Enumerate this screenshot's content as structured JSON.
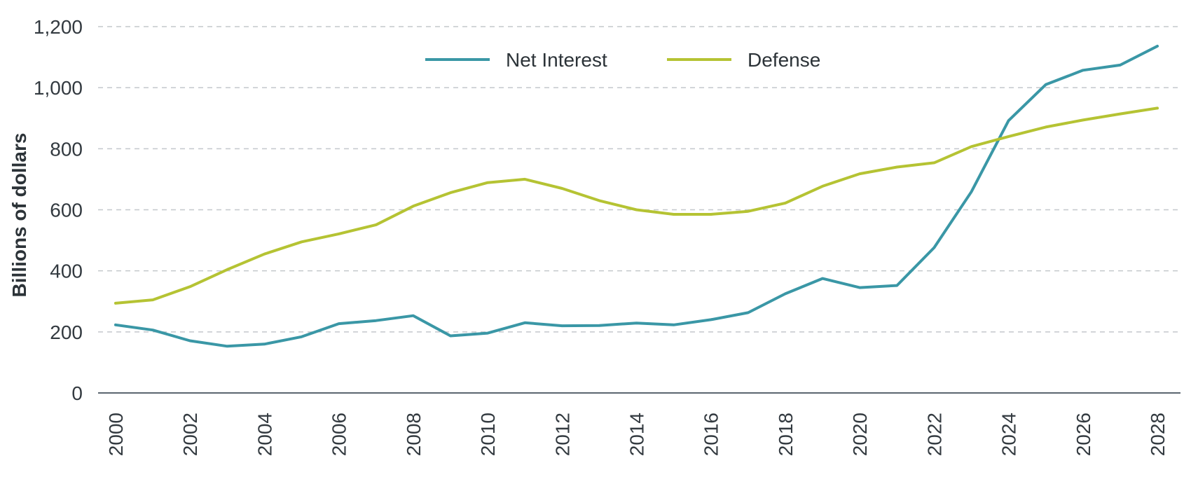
{
  "chart_data": {
    "type": "line",
    "title": "",
    "xlabel": "",
    "ylabel": "Billions of dollars",
    "xlim": [
      2000,
      2028
    ],
    "ylim": [
      0,
      1200
    ],
    "yticks": [
      0,
      200,
      400,
      600,
      800,
      1000,
      1200
    ],
    "ytick_labels": [
      "0",
      "200",
      "400",
      "600",
      "800",
      "1,000",
      "1,200"
    ],
    "xticks": [
      2000,
      2002,
      2004,
      2006,
      2008,
      2010,
      2012,
      2014,
      2016,
      2018,
      2020,
      2022,
      2024,
      2026,
      2028
    ],
    "xtick_labels": [
      "2000",
      "2002",
      "2004",
      "2006",
      "2008",
      "2010",
      "2012",
      "2014",
      "2016",
      "2018",
      "2020",
      "2022",
      "2024",
      "2026",
      "2028"
    ],
    "grid": "horizontal dashed",
    "legend_position": "top-center",
    "x": [
      2000,
      2001,
      2002,
      2003,
      2004,
      2005,
      2006,
      2007,
      2008,
      2009,
      2010,
      2011,
      2012,
      2013,
      2014,
      2015,
      2016,
      2017,
      2018,
      2019,
      2020,
      2021,
      2022,
      2023,
      2024,
      2025,
      2026,
      2027,
      2028
    ],
    "series": [
      {
        "name": "Net Interest",
        "color": "#3a97a6",
        "values": [
          223,
          206,
          171,
          153,
          160,
          184,
          227,
          237,
          253,
          187,
          196,
          230,
          220,
          221,
          229,
          223,
          240,
          263,
          325,
          375,
          345,
          352,
          476,
          659,
          892,
          1010,
          1057,
          1074,
          1136
        ]
      },
      {
        "name": "Defense",
        "color": "#b5c333",
        "values": [
          294,
          305,
          348,
          404,
          455,
          495,
          521,
          551,
          612,
          656,
          689,
          700,
          670,
          630,
          600,
          585,
          585,
          595,
          622,
          677,
          718,
          740,
          754,
          807,
          840,
          871,
          894,
          914,
          933
        ]
      }
    ]
  }
}
